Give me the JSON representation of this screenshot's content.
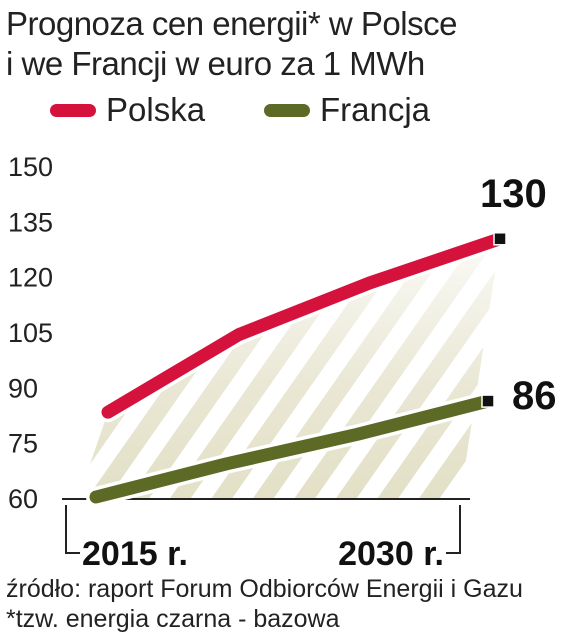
{
  "title_lines": [
    "Prognoza cen energii* w  Polsce",
    "i we Francji w euro za 1 MWh"
  ],
  "legend": [
    {
      "name": "Polska",
      "color": "#d4123c"
    },
    {
      "name": "Francja",
      "color": "#5c6a26"
    }
  ],
  "chart_data": {
    "type": "line",
    "title": "Prognoza cen energii* w  Polsce i we Francji w euro za 1 MWh",
    "xlabel": "",
    "ylabel": "",
    "x": [
      2015,
      2020,
      2025,
      2030
    ],
    "x_tick_labels": [
      "2015 r.",
      "2030 r."
    ],
    "ylim": [
      60,
      150
    ],
    "y_ticks": [
      60,
      75,
      90,
      105,
      120,
      135,
      150
    ],
    "grid": false,
    "legend_position": "top-left",
    "series": [
      {
        "name": "Polska",
        "color": "#d4123c",
        "values": [
          83,
          104,
          118,
          130
        ],
        "end_label": "130"
      },
      {
        "name": "Francja",
        "color": "#5c6a26",
        "values": [
          60,
          69,
          77,
          86
        ],
        "end_label": "86"
      }
    ]
  },
  "footer": {
    "source": "źródło: raport Forum Odbiorców Energii i Gazu",
    "note": "*tzw. energia czarna - bazowa"
  }
}
